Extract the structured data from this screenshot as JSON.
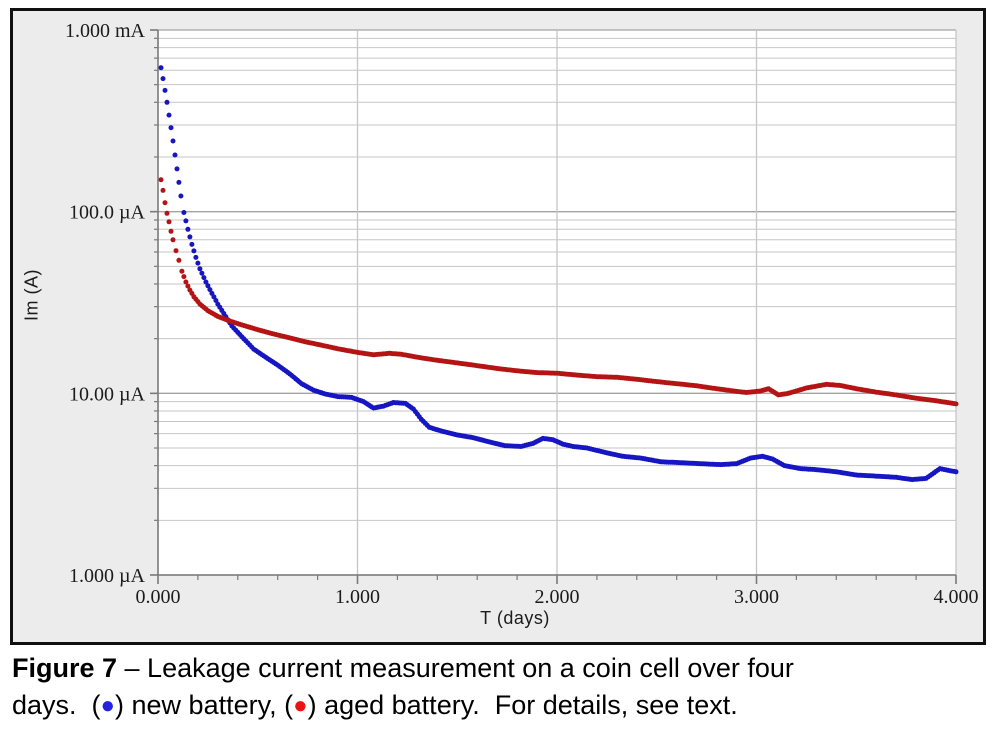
{
  "panel": {
    "background_color": "#ececed",
    "plot_background_color": "#ffffff",
    "border_color": "#101010",
    "minor_grid_color": "#c6c6c6",
    "major_grid_color": "#a3a3a3",
    "axis_line_color": "#7a7a7a"
  },
  "chart_data": {
    "type": "scatter",
    "title": "",
    "x": {
      "label": "T (days)",
      "min": 0,
      "max": 4,
      "major_ticks": [
        0,
        1,
        2,
        3,
        4
      ],
      "major_tick_labels": [
        "0.000",
        "1.000",
        "2.000",
        "3.000",
        "4.000"
      ],
      "minor_tick_step": 0.2,
      "grid_at_major": true
    },
    "y": {
      "label": "Im (A)",
      "scale": "log",
      "min_uA": 1,
      "max_uA": 1000,
      "decade_ticks_uA": [
        1000,
        100,
        10,
        1
      ],
      "decade_tick_labels": [
        "1.000 mA",
        "100.0 µA",
        "10.00 µA",
        "1.000 µA"
      ],
      "minor_grid": "log_2_to_9_per_decade"
    },
    "legend_position": "in-caption",
    "series": [
      {
        "name": "new-battery",
        "label": "new battery",
        "color": "#1616c2",
        "marker": "dot",
        "points_day_uA": [
          [
            0.015,
            620
          ],
          [
            0.025,
            540
          ],
          [
            0.035,
            465
          ],
          [
            0.045,
            400
          ],
          [
            0.055,
            340
          ],
          [
            0.065,
            290
          ],
          [
            0.075,
            245
          ],
          [
            0.085,
            205
          ],
          [
            0.095,
            172
          ],
          [
            0.105,
            145
          ],
          [
            0.115,
            122
          ],
          [
            0.13,
            99
          ],
          [
            0.15,
            80
          ],
          [
            0.17,
            66
          ],
          [
            0.19,
            56
          ],
          [
            0.21,
            48.5
          ],
          [
            0.24,
            41
          ],
          [
            0.27,
            35.5
          ],
          [
            0.3,
            31
          ],
          [
            0.33,
            27.5
          ],
          [
            0.37,
            23.5
          ],
          [
            0.42,
            20.5
          ],
          [
            0.48,
            17.5
          ],
          [
            0.54,
            15.8
          ],
          [
            0.6,
            14.3
          ],
          [
            0.66,
            12.8
          ],
          [
            0.72,
            11.3
          ],
          [
            0.78,
            10.4
          ],
          [
            0.84,
            9.9
          ],
          [
            0.9,
            9.6
          ],
          [
            0.97,
            9.5
          ],
          [
            1.03,
            9.0
          ],
          [
            1.08,
            8.3
          ],
          [
            1.13,
            8.5
          ],
          [
            1.18,
            8.9
          ],
          [
            1.24,
            8.8
          ],
          [
            1.28,
            8.2
          ],
          [
            1.32,
            7.2
          ],
          [
            1.36,
            6.5
          ],
          [
            1.42,
            6.2
          ],
          [
            1.5,
            5.9
          ],
          [
            1.58,
            5.7
          ],
          [
            1.66,
            5.4
          ],
          [
            1.74,
            5.15
          ],
          [
            1.82,
            5.1
          ],
          [
            1.88,
            5.3
          ],
          [
            1.93,
            5.65
          ],
          [
            1.98,
            5.55
          ],
          [
            2.03,
            5.25
          ],
          [
            2.08,
            5.1
          ],
          [
            2.15,
            5.0
          ],
          [
            2.25,
            4.7
          ],
          [
            2.33,
            4.5
          ],
          [
            2.42,
            4.4
          ],
          [
            2.52,
            4.2
          ],
          [
            2.62,
            4.15
          ],
          [
            2.72,
            4.1
          ],
          [
            2.82,
            4.05
          ],
          [
            2.9,
            4.1
          ],
          [
            2.97,
            4.4
          ],
          [
            3.03,
            4.5
          ],
          [
            3.08,
            4.35
          ],
          [
            3.14,
            4.0
          ],
          [
            3.22,
            3.85
          ],
          [
            3.3,
            3.8
          ],
          [
            3.4,
            3.7
          ],
          [
            3.5,
            3.55
          ],
          [
            3.6,
            3.5
          ],
          [
            3.7,
            3.45
          ],
          [
            3.78,
            3.35
          ],
          [
            3.85,
            3.4
          ],
          [
            3.92,
            3.85
          ],
          [
            3.97,
            3.75
          ],
          [
            4.0,
            3.7
          ]
        ]
      },
      {
        "name": "aged-battery",
        "label": "aged battery",
        "color": "#b41414",
        "marker": "dot",
        "points_day_uA": [
          [
            0.015,
            150
          ],
          [
            0.025,
            131
          ],
          [
            0.035,
            112
          ],
          [
            0.045,
            98
          ],
          [
            0.055,
            88
          ],
          [
            0.065,
            78
          ],
          [
            0.075,
            70
          ],
          [
            0.09,
            61
          ],
          [
            0.105,
            54
          ],
          [
            0.12,
            47
          ],
          [
            0.14,
            41
          ],
          [
            0.16,
            37
          ],
          [
            0.18,
            34
          ],
          [
            0.21,
            31
          ],
          [
            0.25,
            28.5
          ],
          [
            0.3,
            26.5
          ],
          [
            0.36,
            25
          ],
          [
            0.42,
            23.8
          ],
          [
            0.5,
            22.4
          ],
          [
            0.58,
            21.2
          ],
          [
            0.66,
            20.2
          ],
          [
            0.74,
            19.2
          ],
          [
            0.82,
            18.4
          ],
          [
            0.9,
            17.6
          ],
          [
            1.0,
            16.8
          ],
          [
            1.08,
            16.3
          ],
          [
            1.16,
            16.6
          ],
          [
            1.22,
            16.4
          ],
          [
            1.3,
            15.8
          ],
          [
            1.4,
            15.2
          ],
          [
            1.5,
            14.7
          ],
          [
            1.6,
            14.2
          ],
          [
            1.7,
            13.7
          ],
          [
            1.8,
            13.3
          ],
          [
            1.9,
            13.0
          ],
          [
            2.0,
            12.9
          ],
          [
            2.1,
            12.6
          ],
          [
            2.2,
            12.35
          ],
          [
            2.3,
            12.25
          ],
          [
            2.4,
            11.95
          ],
          [
            2.5,
            11.6
          ],
          [
            2.6,
            11.3
          ],
          [
            2.7,
            11.0
          ],
          [
            2.8,
            10.6
          ],
          [
            2.9,
            10.25
          ],
          [
            2.95,
            10.1
          ],
          [
            3.02,
            10.3
          ],
          [
            3.06,
            10.6
          ],
          [
            3.11,
            9.8
          ],
          [
            3.16,
            10.0
          ],
          [
            3.25,
            10.7
          ],
          [
            3.35,
            11.2
          ],
          [
            3.42,
            11.05
          ],
          [
            3.5,
            10.6
          ],
          [
            3.6,
            10.15
          ],
          [
            3.7,
            9.8
          ],
          [
            3.8,
            9.4
          ],
          [
            3.9,
            9.1
          ],
          [
            4.0,
            8.75
          ]
        ]
      }
    ]
  },
  "caption": {
    "lines": [
      [
        {
          "text": "Figure 7",
          "style": "bold"
        },
        {
          "text": " – Leakage current measurement on a coin cell over four",
          "style": "normal"
        }
      ],
      [
        {
          "text": "days.  (",
          "style": "normal"
        },
        {
          "text": "●",
          "style": "dot",
          "color": "#2323e0"
        },
        {
          "text": ") new battery, (",
          "style": "normal"
        },
        {
          "text": "●",
          "style": "dot",
          "color": "#ee1111"
        },
        {
          "text": ") aged battery.  For details, see text.",
          "style": "normal"
        }
      ]
    ]
  }
}
